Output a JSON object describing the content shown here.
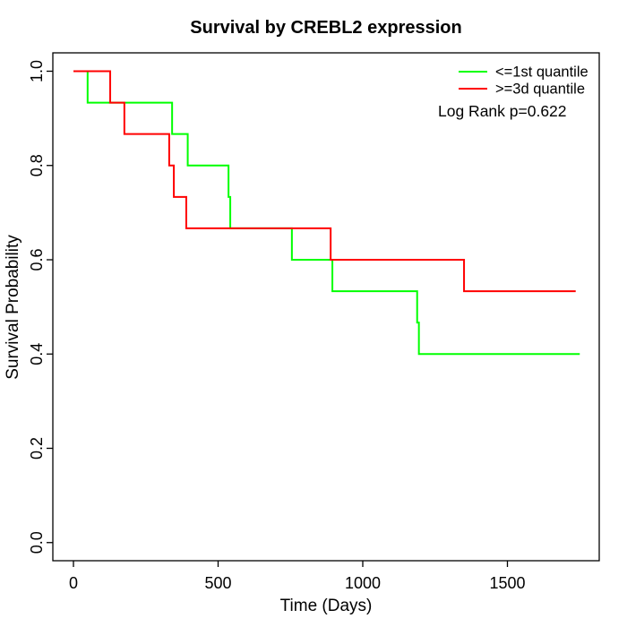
{
  "page": {
    "background": "#ffffff",
    "kind": "statistical plot"
  },
  "chart_data": {
    "type": "line",
    "subtype": "kaplan-meier-step",
    "title": "Survival by CREBL2 expression",
    "xlabel": "Time (Days)",
    "ylabel": "Survival Probability",
    "x_ticks": [
      0,
      500,
      1000,
      1500
    ],
    "y_ticks": [
      0.0,
      0.2,
      0.4,
      0.6,
      0.8,
      1.0
    ],
    "xlim": [
      0,
      1820
    ],
    "ylim": [
      0.0,
      1.0
    ],
    "grid": false,
    "legend_position": "top-right",
    "annotation": "Log Rank p=0.622",
    "axis_color": "#000000",
    "series": [
      {
        "name": "<=1st quantile",
        "color": "#00ff00",
        "end_time": 1750,
        "points": [
          [
            0,
            1.0
          ],
          [
            49,
            0.9333
          ],
          [
            341,
            0.8667
          ],
          [
            395,
            0.8
          ],
          [
            536,
            0.7333
          ],
          [
            542,
            0.6667
          ],
          [
            755,
            0.6
          ],
          [
            895,
            0.5333
          ],
          [
            1188,
            0.4667
          ],
          [
            1194,
            0.4
          ]
        ]
      },
      {
        "name": ">=3d quantile",
        "color": "#ff0000",
        "end_time": 1736,
        "points": [
          [
            0,
            1.0
          ],
          [
            127,
            0.9333
          ],
          [
            176,
            0.8667
          ],
          [
            331,
            0.8
          ],
          [
            347,
            0.7333
          ],
          [
            390,
            0.6667
          ],
          [
            889,
            0.6
          ],
          [
            1350,
            0.5333
          ]
        ]
      }
    ]
  }
}
